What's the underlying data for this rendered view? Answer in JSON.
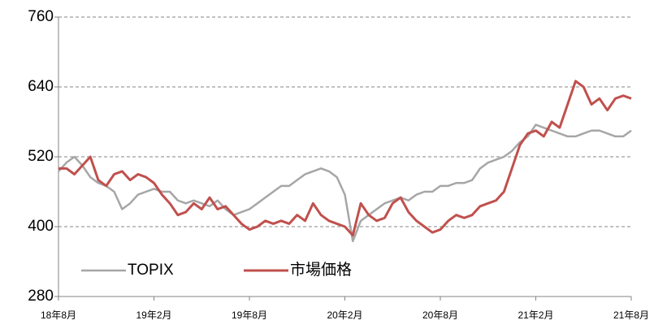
{
  "chart_data": {
    "type": "line",
    "x": [
      0,
      0.5,
      1,
      1.5,
      2,
      2.5,
      3,
      3.5,
      4,
      4.5,
      5,
      5.5,
      6,
      6.5,
      7,
      7.5,
      8,
      8.5,
      9,
      9.5,
      10,
      10.5,
      11,
      11.5,
      12,
      12.5,
      13,
      13.5,
      14,
      14.5,
      15,
      15.5,
      16,
      16.5,
      17,
      17.5,
      18,
      18.5,
      19,
      19.5,
      20,
      20.5,
      21,
      21.5,
      22,
      22.5,
      23,
      23.5,
      24,
      24.5,
      25,
      25.5,
      26,
      26.5,
      27,
      27.5,
      28,
      28.5,
      29,
      29.5,
      30,
      30.5,
      31,
      31.5,
      32,
      32.5,
      33,
      33.5,
      34,
      34.5,
      35,
      35.5,
      36
    ],
    "series": [
      {
        "name": "TOPIX",
        "color": "#a6a6a6",
        "values": [
          495,
          510,
          520,
          505,
          485,
          475,
          470,
          460,
          430,
          440,
          455,
          460,
          465,
          460,
          460,
          445,
          440,
          445,
          440,
          435,
          445,
          430,
          420,
          425,
          430,
          440,
          450,
          460,
          470,
          470,
          480,
          490,
          495,
          500,
          495,
          485,
          455,
          375,
          410,
          420,
          430,
          440,
          445,
          450,
          445,
          455,
          460,
          460,
          470,
          470,
          475,
          475,
          480,
          500,
          510,
          515,
          520,
          530,
          545,
          555,
          575,
          570,
          565,
          560,
          555,
          555,
          560,
          565,
          565,
          560,
          555,
          555,
          565
        ]
      },
      {
        "name": "市場価格",
        "color": "#c0504d",
        "values": [
          500,
          500,
          490,
          505,
          520,
          480,
          470,
          490,
          495,
          480,
          490,
          485,
          475,
          455,
          440,
          420,
          425,
          440,
          430,
          450,
          430,
          435,
          420,
          405,
          395,
          400,
          410,
          405,
          410,
          405,
          420,
          410,
          440,
          420,
          410,
          405,
          400,
          385,
          440,
          420,
          410,
          415,
          440,
          450,
          425,
          410,
          400,
          390,
          395,
          410,
          420,
          415,
          420,
          435,
          440,
          445,
          460,
          500,
          540,
          560,
          565,
          555,
          580,
          570,
          610,
          650,
          640,
          610,
          620,
          600,
          620,
          625,
          620
        ]
      }
    ],
    "xlim": [
      0,
      36
    ],
    "xticks": [
      {
        "value": 0,
        "label": "18年8月"
      },
      {
        "value": 6,
        "label": "19年2月"
      },
      {
        "value": 12,
        "label": "19年8月"
      },
      {
        "value": 18,
        "label": "20年2月"
      },
      {
        "value": 24,
        "label": "20年8月"
      },
      {
        "value": 30,
        "label": "21年2月"
      },
      {
        "value": 36,
        "label": "21年8月"
      }
    ],
    "ylim": [
      280,
      760
    ],
    "yticks": [
      280,
      400,
      520,
      640,
      760
    ],
    "grid": true,
    "legend": "lower left"
  }
}
